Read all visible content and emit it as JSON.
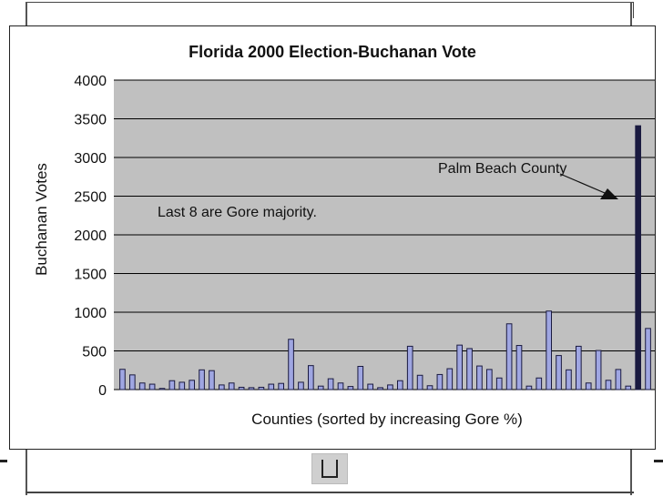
{
  "chart_data": {
    "type": "bar",
    "title": "Florida 2000 Election-Buchanan Vote",
    "xlabel": "Counties (sorted by increasing Gore %)",
    "ylabel": "Buchanan Votes",
    "ylim": [
      0,
      4000
    ],
    "yticks": [
      0,
      500,
      1000,
      1500,
      2000,
      2500,
      3000,
      3500,
      4000
    ],
    "grid": true,
    "annotations": [
      {
        "name": "gore-majority-note",
        "text": "Last 8 are Gore majority."
      },
      {
        "name": "palm-beach-label",
        "text": "Palm Beach County"
      }
    ],
    "values": [
      262,
      190,
      85,
      70,
      15,
      115,
      95,
      120,
      255,
      245,
      60,
      85,
      30,
      25,
      30,
      70,
      80,
      650,
      95,
      310,
      45,
      140,
      85,
      40,
      300,
      70,
      25,
      60,
      115,
      560,
      185,
      50,
      195,
      270,
      575,
      530,
      305,
      260,
      150,
      850,
      570,
      45,
      150,
      1015,
      440,
      255,
      560,
      85,
      505,
      120,
      260,
      45,
      3410,
      790
    ],
    "colors": {
      "plot_bg": "#c0c0c0",
      "bar_fill": "#9fa6e2",
      "bar_dark": "#1a1a40",
      "bar_stroke": "#1a1a40",
      "grid": "#000000"
    }
  }
}
